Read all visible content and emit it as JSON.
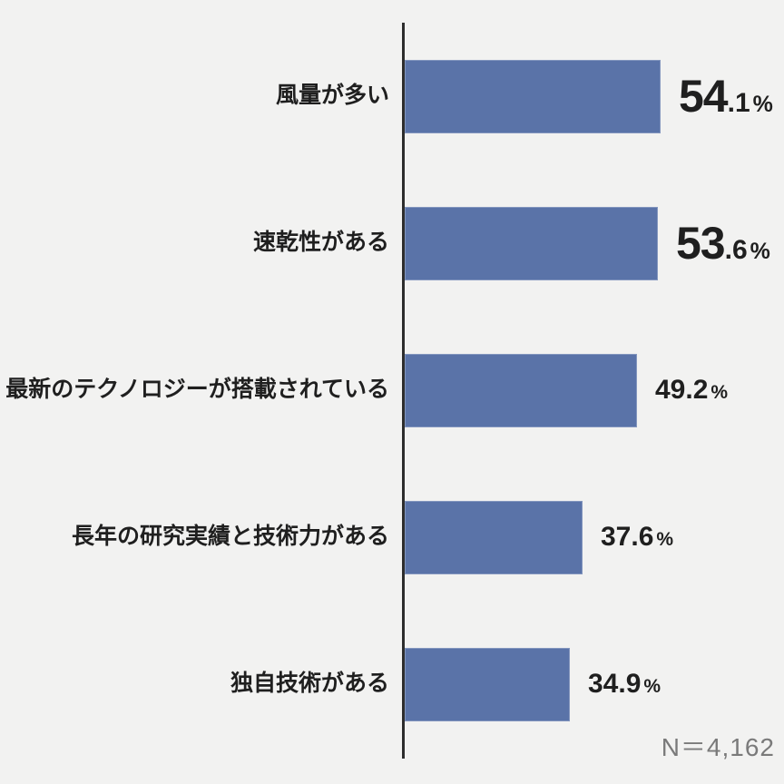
{
  "chart_data": {
    "type": "bar",
    "orientation": "horizontal",
    "categories": [
      "風量が多い",
      "速乾性がある",
      "最新のテクノロジーが搭載されている",
      "長年の研究実績と技術力がある",
      "独自技術がある"
    ],
    "values": [
      54.1,
      53.6,
      49.2,
      37.6,
      34.9
    ],
    "unit": "%",
    "value_display": [
      {
        "big": "54",
        "small": ".1",
        "unit": "%",
        "emphasized": true
      },
      {
        "big": "53",
        "small": ".6",
        "unit": "%",
        "emphasized": true
      },
      {
        "big": "",
        "small": "49.2",
        "unit": "%",
        "emphasized": false
      },
      {
        "big": "",
        "small": "37.6",
        "unit": "%",
        "emphasized": false
      },
      {
        "big": "",
        "small": "34.9",
        "unit": "%",
        "emphasized": false
      }
    ],
    "sample_size_label": "N＝4,162",
    "legend": false,
    "grid": false,
    "colors": {
      "bar": "#5a73a8",
      "background": "#f2f2f1",
      "axis": "#2d2d2d",
      "value_text": "#1f1f1f",
      "category_text": "#1f1f1f",
      "sample_size_text": "#7a7a7a"
    }
  }
}
